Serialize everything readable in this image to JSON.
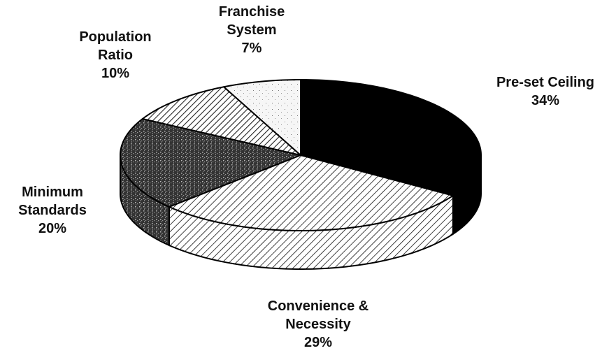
{
  "chart_data": {
    "type": "pie",
    "categories": [
      "Pre-set Ceiling",
      "Convenience & Necessity",
      "Minimum Standards",
      "Population Ratio",
      "Franchise System"
    ],
    "values": [
      34,
      29,
      20,
      10,
      7
    ],
    "value_labels": [
      "34%",
      "29%",
      "20%",
      "10%",
      "7%"
    ]
  }
}
